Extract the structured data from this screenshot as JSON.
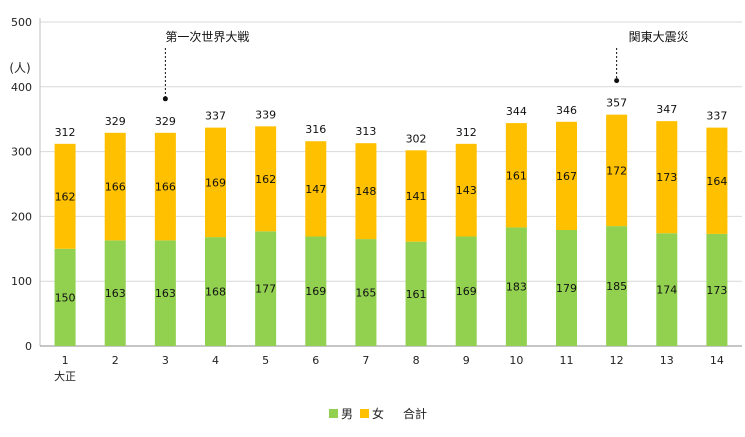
{
  "chart_data": {
    "type": "bar",
    "stacked": true,
    "ylabel": "(人)",
    "ylim": [
      0,
      500
    ],
    "yticks": [
      "0",
      "100",
      "200",
      "300",
      "400",
      "500"
    ],
    "categories": [
      "1",
      "2",
      "3",
      "4",
      "5",
      "6",
      "7",
      "8",
      "9",
      "10",
      "11",
      "12",
      "13",
      "14"
    ],
    "x_sublabel_first": "大正",
    "series": [
      {
        "name": "男",
        "color": "#92d050",
        "values": [
          150,
          163,
          163,
          168,
          177,
          169,
          165,
          161,
          169,
          183,
          179,
          185,
          174,
          173
        ]
      },
      {
        "name": "女",
        "color": "#ffc000",
        "values": [
          162,
          166,
          166,
          169,
          162,
          147,
          148,
          141,
          143,
          161,
          167,
          172,
          173,
          164
        ]
      }
    ],
    "totals_name": "合計",
    "totals": [
      312,
      329,
      329,
      337,
      339,
      316,
      313,
      302,
      312,
      344,
      346,
      357,
      347,
      337
    ],
    "annotations": [
      {
        "category": "3",
        "text": "第一次世界大戦"
      },
      {
        "category": "12",
        "text": "関東大震災"
      }
    ],
    "grid": true,
    "legend_position": "bottom"
  }
}
